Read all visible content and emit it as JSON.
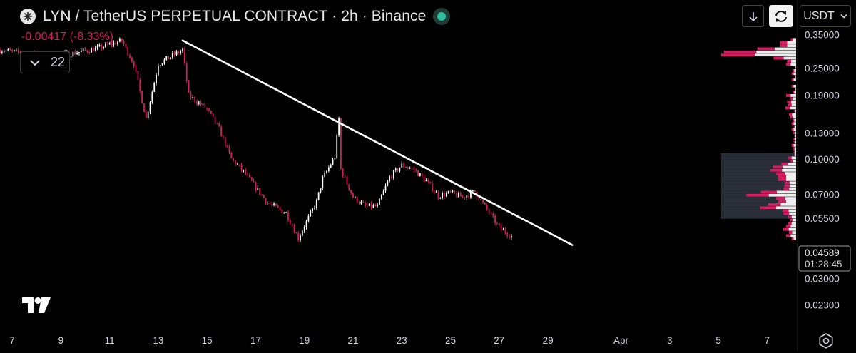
{
  "header": {
    "title": "LYN / TetherUS PERPETUAL CONTRACT · 2h · Binance",
    "change": "-0.00417 (-8.33%)",
    "indicator_count": "22",
    "unit": "USDT"
  },
  "icons": {
    "symbol": "lyn-symbol-icon",
    "live": "live-status-icon",
    "download": "arrow-down-icon",
    "cycle": "refresh-icon",
    "dropdown": "chevron-down-icon",
    "logo": "tradingview-logo",
    "settings": "settings-icon"
  },
  "price_label": {
    "price": "0.04589",
    "countdown": "01:28:45"
  },
  "chart_data": {
    "type": "candlestick",
    "yscale": "log",
    "ylim": [
      0.021,
      0.4
    ],
    "xlim": [
      "2025-03-06T12:00",
      "2025-04-08T06:00"
    ],
    "y_ticks": [
      "0.35000",
      "0.25000",
      "0.19000",
      "0.13000",
      "0.10000",
      "0.07000",
      "0.05500",
      "0.03000",
      "0.02300"
    ],
    "x_ticks": [
      {
        "date": "2025-03-07",
        "label": "7"
      },
      {
        "date": "2025-03-09",
        "label": "9"
      },
      {
        "date": "2025-03-11",
        "label": "11"
      },
      {
        "date": "2025-03-13",
        "label": "13"
      },
      {
        "date": "2025-03-15",
        "label": "15"
      },
      {
        "date": "2025-03-17",
        "label": "17"
      },
      {
        "date": "2025-03-19",
        "label": "19"
      },
      {
        "date": "2025-03-21",
        "label": "21"
      },
      {
        "date": "2025-03-23",
        "label": "23"
      },
      {
        "date": "2025-03-25",
        "label": "25"
      },
      {
        "date": "2025-03-27",
        "label": "27"
      },
      {
        "date": "2025-03-29",
        "label": "29"
      },
      {
        "date": "2025-04-01",
        "label": "Apr"
      },
      {
        "date": "2025-04-03",
        "label": "3"
      },
      {
        "date": "2025-04-05",
        "label": "5"
      },
      {
        "date": "2025-04-07",
        "label": "7"
      }
    ],
    "close_path": [
      {
        "date": "2025-03-06T12:00",
        "close": 0.3
      },
      {
        "date": "2025-03-07T12:00",
        "close": 0.29
      },
      {
        "date": "2025-03-08T12:00",
        "close": 0.28
      },
      {
        "date": "2025-03-09T12:00",
        "close": 0.29
      },
      {
        "date": "2025-03-10T12:00",
        "close": 0.305
      },
      {
        "date": "2025-03-11T12:00",
        "close": 0.33
      },
      {
        "date": "2025-03-12T00:00",
        "close": 0.26
      },
      {
        "date": "2025-03-12T12:00",
        "close": 0.15
      },
      {
        "date": "2025-03-13T00:00",
        "close": 0.26
      },
      {
        "date": "2025-03-13T12:00",
        "close": 0.28
      },
      {
        "date": "2025-03-14T00:00",
        "close": 0.3
      },
      {
        "date": "2025-03-14T06:00",
        "close": 0.19
      },
      {
        "date": "2025-03-15T00:00",
        "close": 0.165
      },
      {
        "date": "2025-03-15T12:00",
        "close": 0.135
      },
      {
        "date": "2025-03-16T00:00",
        "close": 0.1
      },
      {
        "date": "2025-03-16T12:00",
        "close": 0.088
      },
      {
        "date": "2025-03-17T12:00",
        "close": 0.064
      },
      {
        "date": "2025-03-18T06:00",
        "close": 0.058
      },
      {
        "date": "2025-03-18T18:00",
        "close": 0.045
      },
      {
        "date": "2025-03-19T12:00",
        "close": 0.065
      },
      {
        "date": "2025-03-19T18:00",
        "close": 0.082
      },
      {
        "date": "2025-03-20T06:00",
        "close": 0.102
      },
      {
        "date": "2025-03-20T10:00",
        "close": 0.15
      },
      {
        "date": "2025-03-20T12:00",
        "close": 0.09
      },
      {
        "date": "2025-03-21T00:00",
        "close": 0.068
      },
      {
        "date": "2025-03-21T12:00",
        "close": 0.062
      },
      {
        "date": "2025-03-22T00:00",
        "close": 0.062
      },
      {
        "date": "2025-03-22T12:00",
        "close": 0.083
      },
      {
        "date": "2025-03-23T00:00",
        "close": 0.094
      },
      {
        "date": "2025-03-23T12:00",
        "close": 0.09
      },
      {
        "date": "2025-03-24T00:00",
        "close": 0.08
      },
      {
        "date": "2025-03-24T12:00",
        "close": 0.069
      },
      {
        "date": "2025-03-25T00:00",
        "close": 0.071
      },
      {
        "date": "2025-03-25T12:00",
        "close": 0.068
      },
      {
        "date": "2025-03-26T00:00",
        "close": 0.072
      },
      {
        "date": "2025-03-26T12:00",
        "close": 0.06
      },
      {
        "date": "2025-03-27T00:00",
        "close": 0.05
      },
      {
        "date": "2025-03-27T12:00",
        "close": 0.0459
      }
    ],
    "trendline": [
      {
        "date": "2025-03-14T00:00",
        "value": 0.33
      },
      {
        "date": "2025-03-30T00:00",
        "value": 0.042
      }
    ],
    "colors": {
      "up": "#ffffff",
      "down": "#d81b60",
      "trendline": "#ffffff",
      "profile_up": "#ffffff",
      "profile_down": "#d81b60",
      "profile_bg": "#2a2e39"
    }
  }
}
